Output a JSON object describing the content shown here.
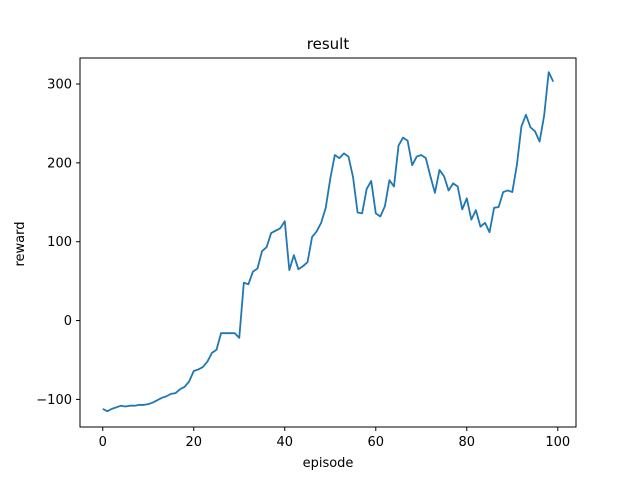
{
  "chart_data": {
    "type": "line",
    "title": "result",
    "xlabel": "episode",
    "ylabel": "reward",
    "xlim": [
      -5,
      104
    ],
    "ylim": [
      -135,
      333
    ],
    "xticks": [
      0,
      20,
      40,
      60,
      80,
      100
    ],
    "yticks": [
      -100,
      0,
      100,
      200,
      300
    ],
    "xtick_labels": [
      "0",
      "20",
      "40",
      "60",
      "80",
      "100"
    ],
    "ytick_labels": [
      "−100",
      "0",
      "100",
      "200",
      "300"
    ],
    "grid": false,
    "line_color": "#1f77b4",
    "series": [
      {
        "x": [
          0,
          1,
          2,
          3,
          4,
          5,
          6,
          7,
          8,
          9,
          10,
          11,
          12,
          13,
          14,
          15,
          16,
          17,
          18,
          19,
          20,
          21,
          22,
          23,
          24,
          25,
          26,
          27,
          28,
          29,
          30,
          31,
          32,
          33,
          34,
          35,
          36,
          37,
          38,
          39,
          40,
          41,
          42,
          43,
          44,
          45,
          46,
          47,
          48,
          49,
          50,
          51,
          52,
          53,
          54,
          55,
          56,
          57,
          58,
          59,
          60,
          61,
          62,
          63,
          64,
          65,
          66,
          67,
          68,
          69,
          70,
          71,
          72,
          73,
          74,
          75,
          76,
          77,
          78,
          79,
          80,
          81,
          82,
          83,
          84,
          85,
          86,
          87,
          88,
          89,
          90,
          91,
          92,
          93,
          94,
          95,
          96,
          97,
          98,
          99
        ],
        "y": [
          -112,
          -115,
          -112,
          -110,
          -108,
          -109,
          -108,
          -108,
          -107,
          -107,
          -106,
          -104,
          -101,
          -98,
          -96,
          -93,
          -92,
          -87,
          -84,
          -77,
          -64,
          -62,
          -59,
          -52,
          -41,
          -37,
          -16,
          -16,
          -16,
          -16,
          -22,
          48,
          46,
          62,
          66,
          88,
          93,
          111,
          114,
          117,
          126,
          64,
          83,
          65,
          69,
          74,
          106,
          113,
          124,
          143,
          180,
          210,
          206,
          212,
          208,
          182,
          137,
          136,
          167,
          177,
          136,
          132,
          145,
          178,
          170,
          222,
          232,
          228,
          197,
          208,
          210,
          206,
          183,
          162,
          191,
          183,
          165,
          174,
          170,
          141,
          155,
          128,
          140,
          119,
          124,
          112,
          143,
          144,
          163,
          165,
          163,
          197,
          246,
          261,
          245,
          240,
          227,
          260,
          315,
          303
        ]
      }
    ]
  }
}
